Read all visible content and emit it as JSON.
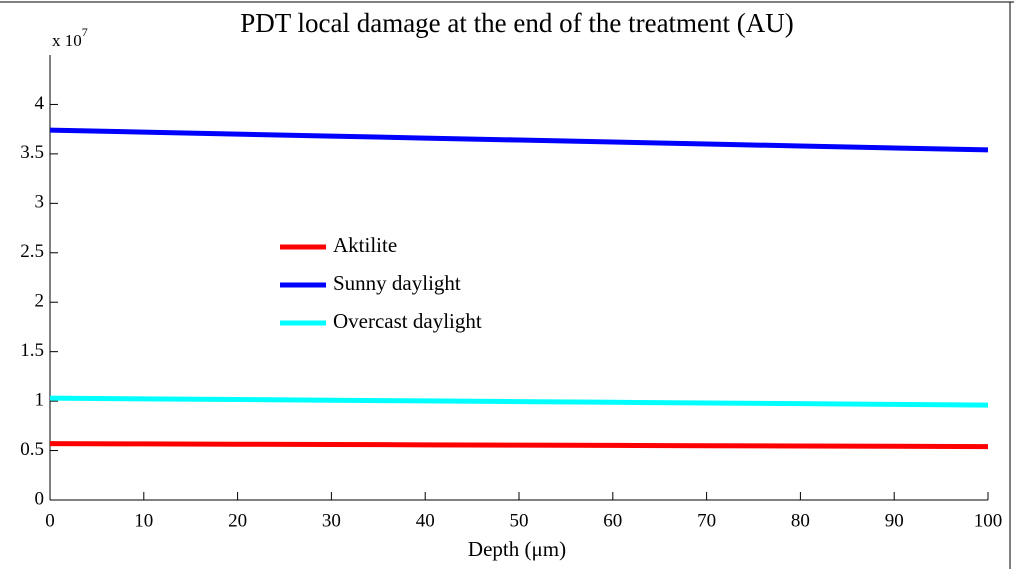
{
  "chart_data": {
    "type": "line",
    "title": "PDT local damage at the end of the treatment (AU)",
    "y_multiplier": {
      "base": "x 10",
      "exponent": "7"
    },
    "xlabel": "Depth (μm)",
    "x": [
      0,
      10,
      20,
      30,
      40,
      50,
      60,
      70,
      80,
      90,
      100
    ],
    "series": [
      {
        "name": "Aktilite",
        "color": "#ff0000",
        "values": [
          0.57,
          0.567,
          0.564,
          0.561,
          0.558,
          0.555,
          0.552,
          0.549,
          0.546,
          0.543,
          0.54
        ]
      },
      {
        "name": "Sunny daylight",
        "color": "#0000ff",
        "values": [
          3.74,
          3.72,
          3.7,
          3.68,
          3.66,
          3.64,
          3.62,
          3.6,
          3.58,
          3.56,
          3.54
        ]
      },
      {
        "name": "Overcast daylight",
        "color": "#00ffff",
        "values": [
          1.03,
          1.023,
          1.016,
          1.009,
          1.002,
          0.995,
          0.988,
          0.981,
          0.974,
          0.967,
          0.96
        ]
      }
    ],
    "xlim": [
      0,
      100
    ],
    "xticks": [
      0,
      10,
      20,
      30,
      40,
      50,
      60,
      70,
      80,
      90,
      100
    ],
    "ylim": [
      0,
      4.5
    ],
    "yticks": [
      0,
      0.5,
      1,
      1.5,
      2,
      2.5,
      3,
      3.5,
      4
    ],
    "grid": false,
    "legend": "center"
  }
}
